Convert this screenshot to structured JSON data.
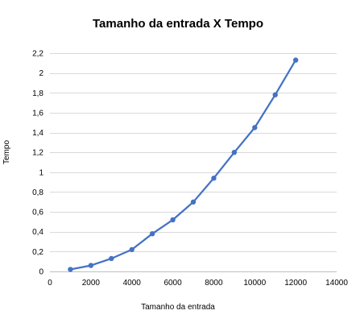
{
  "chart_data": {
    "type": "line",
    "title": "Tamanho da entrada X Tempo",
    "xlabel": "Tamanho da entrada",
    "ylabel": "Tempo",
    "xlim": [
      0,
      14000
    ],
    "ylim": [
      0,
      2.2
    ],
    "x_ticks": [
      0,
      2000,
      4000,
      6000,
      8000,
      10000,
      12000,
      14000
    ],
    "x_tick_labels": [
      "0",
      "2000",
      "4000",
      "6000",
      "8000",
      "10000",
      "12000",
      "14000"
    ],
    "y_ticks": [
      0,
      0.2,
      0.4,
      0.6,
      0.8,
      1,
      1.2,
      1.4,
      1.6,
      1.8,
      2,
      2.2
    ],
    "y_tick_labels": [
      "0",
      "0,2",
      "0,4",
      "0,6",
      "0,8",
      "1",
      "1,2",
      "1,4",
      "1,6",
      "1,8",
      "2",
      "2,2"
    ],
    "grid": "horizontal",
    "legend": "none",
    "series": [
      {
        "color": "#4472c4",
        "x": [
          1000,
          2000,
          3000,
          4000,
          5000,
          6000,
          7000,
          8000,
          9000,
          10000,
          11000,
          12000
        ],
        "y": [
          0.02,
          0.06,
          0.13,
          0.22,
          0.38,
          0.52,
          0.7,
          0.94,
          1.2,
          1.45,
          1.78,
          2.13
        ]
      }
    ],
    "colors": {
      "gridline": "#d9d9d9",
      "axis": "#bfbfbf",
      "text": "#000000"
    }
  }
}
